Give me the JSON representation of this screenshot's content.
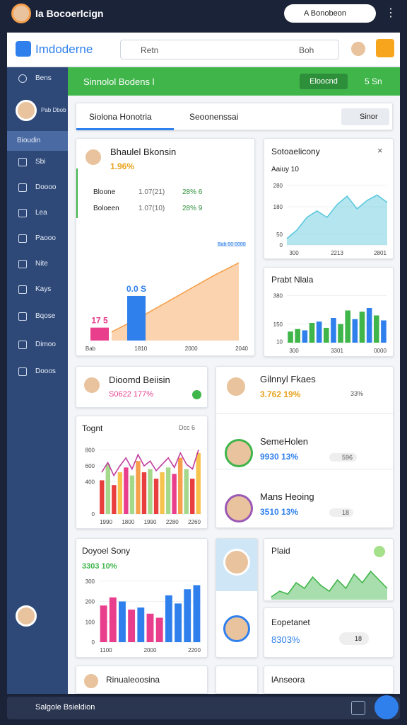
{
  "topbar": {
    "app_name": "Ia Bocoerlcign",
    "account": "A Bonobeon"
  },
  "header": {
    "logo": "Imdoderne",
    "search": "Retn",
    "search_scope": "Boh"
  },
  "sidebar": {
    "items": [
      "Bens",
      "Bioudin",
      "Sbi",
      "Doooo",
      "Lea",
      "Paooo",
      "Nite",
      "Kays",
      "Bqose",
      "Dimoo",
      "Dooos"
    ],
    "profile": "Pab Dbob"
  },
  "banner": {
    "title": "Sinnolol Bodens l",
    "button": "Eloocnd",
    "filter": "5 Sn"
  },
  "tabs": {
    "items": [
      "Siolona Honotria",
      "Seoonenssai"
    ],
    "button": "Sinor"
  },
  "summary": {
    "title": "Bhaulel Bkonsin",
    "change": "1.96%",
    "rows": [
      [
        "Bloone",
        "1.07(21)",
        "28% 6"
      ],
      [
        "Boloeen",
        "1.07(10)",
        "28% 9"
      ]
    ],
    "badge": "Bab 00 0000",
    "chart": {
      "type": "combo",
      "values": [
        12,
        30,
        50,
        70,
        90,
        108
      ],
      "color": "#f6a04d",
      "bars": [
        18,
        62
      ],
      "bar_colors": [
        "#e83e8c",
        "#2f80ed"
      ],
      "annotations": [
        "17 5",
        "0.0 S"
      ],
      "ylim": [
        0,
        120
      ],
      "x_labels": [
        "Bab",
        "1810",
        "2000",
        "2040"
      ]
    }
  },
  "activity": {
    "title": "Sotoaelicony",
    "subtitle": "Aaiuy 10",
    "chart": {
      "type": "area",
      "values": [
        30,
        70,
        130,
        160,
        130,
        190,
        230,
        170,
        210,
        235,
        200
      ],
      "color": "#5bc8dd",
      "ylim": [
        0,
        300
      ],
      "yticks": [
        0,
        50,
        180,
        280
      ],
      "x_labels": [
        "300",
        "2213",
        "2801"
      ]
    }
  },
  "profit": {
    "title": "Prabt Nlala",
    "chart": {
      "type": "bar",
      "values": [
        90,
        110,
        100,
        160,
        170,
        120,
        200,
        150,
        260,
        190,
        250,
        280,
        220,
        180
      ],
      "colors": [
        "#3fb54a",
        "#3fb54a",
        "#2f80ed",
        "#3fb54a",
        "#2f80ed",
        "#3fb54a",
        "#2f80ed",
        "#3fb54a",
        "#3fb54a",
        "#2f80ed",
        "#3fb54a",
        "#2f80ed",
        "#3fb54a",
        "#2f80ed"
      ],
      "ylim": [
        0,
        400
      ],
      "yticks": [
        10,
        150,
        380
      ],
      "x_labels": [
        "300",
        "3301",
        "0000"
      ]
    }
  },
  "dioomd": {
    "title": "Dioomd Beiisin",
    "value": "S0622 177%"
  },
  "people": {
    "title": "Gilnnyl Fkaes",
    "items": [
      {
        "name": "Gilnnyl Fkaes",
        "value": "3.762 19%",
        "tag": "33%"
      },
      {
        "name": "SemeHolen",
        "value": "9930 13%",
        "tag": "596"
      },
      {
        "name": "Mans Heoing",
        "value": "3510 13%",
        "tag": "18"
      }
    ]
  },
  "tognt": {
    "title": "Tognt",
    "filter": "Dcc 6",
    "chart": {
      "type": "bar",
      "values": [
        420,
        620,
        360,
        520,
        580,
        480,
        660,
        520,
        560,
        440,
        520,
        580,
        500,
        700,
        560,
        440,
        760
      ],
      "colors": [
        "#e83e3e",
        "#a5d88a",
        "#e83e3e",
        "#f6c34d",
        "#e83e8c",
        "#a5d88a",
        "#f6a04d",
        "#e83e3e",
        "#a5d88a",
        "#e83e3e",
        "#f6c34d",
        "#a5d88a",
        "#e83e8c",
        "#f6a04d",
        "#a5d88a",
        "#e83e3e",
        "#f6c34d"
      ],
      "line": [
        520,
        640,
        480,
        600,
        700,
        560,
        740,
        600,
        660,
        540,
        620,
        700,
        580,
        760,
        620,
        560,
        800
      ],
      "line_color": "#c03ea0",
      "ylim": [
        0,
        900
      ],
      "yticks": [
        0,
        400,
        600,
        800
      ],
      "x_labels": [
        "1990",
        "1800",
        "1990",
        "2280",
        "2260"
      ]
    }
  },
  "doyoel": {
    "title": "Doyoel Sony",
    "value": "3303 10%",
    "chart": {
      "type": "bar",
      "values": [
        180,
        220,
        200,
        160,
        170,
        140,
        120,
        230,
        190,
        260,
        280
      ],
      "colors": [
        "#e83e8c",
        "#e83e8c",
        "#2f80ed",
        "#e83e8c",
        "#2f80ed",
        "#e83e8c",
        "#e83e8c",
        "#2f80ed",
        "#2f80ed",
        "#2f80ed",
        "#2f80ed"
      ],
      "ylim": [
        0,
        320
      ],
      "yticks": [
        0,
        100,
        200,
        300
      ],
      "x_labels": [
        "1100",
        "2000",
        "2200"
      ]
    }
  },
  "plaid": {
    "title": "Plaid",
    "chart": {
      "type": "area",
      "values": [
        10,
        30,
        20,
        60,
        40,
        80,
        50,
        30,
        70,
        40,
        90,
        60,
        100,
        70,
        40
      ],
      "color": "#3fb54a",
      "ylim": [
        0,
        120
      ],
      "x_labels": []
    }
  },
  "eopetanet": {
    "title": "Eopetanet",
    "value": "8303%",
    "tag": "18"
  },
  "bottom": {
    "left": "Rinualeoosina",
    "right": "lAnseora"
  },
  "footer": {
    "text": "Salgole Bsieldion"
  }
}
